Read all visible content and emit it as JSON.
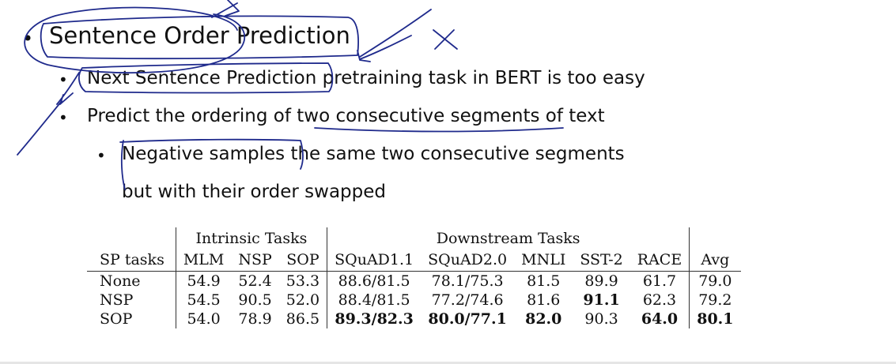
{
  "slide": {
    "bullets": [
      {
        "text": "Sentence Order Prediction",
        "level": 1
      },
      {
        "text": "Next Sentence Prediction pretraining task in BERT is too easy",
        "level": 2
      },
      {
        "text": "Predict the ordering of two consecutive segments of text",
        "level": 2
      },
      {
        "text": "Negative samples the same two consecutive segments",
        "level": 3
      },
      {
        "text": "but with their order swapped",
        "level": 3,
        "continuation": true
      }
    ]
  },
  "table": {
    "group_headers": {
      "intrinsic": "Intrinsic Tasks",
      "downstream": "Downstream Tasks"
    },
    "columns": [
      "SP tasks",
      "MLM",
      "NSP",
      "SOP",
      "SQuAD1.1",
      "SQuAD2.0",
      "MNLI",
      "SST-2",
      "RACE",
      "Avg"
    ],
    "rows": [
      {
        "cells": [
          "None",
          "54.9",
          "52.4",
          "53.3",
          "88.6/81.5",
          "78.1/75.3",
          "81.5",
          "89.9",
          "61.7",
          "79.0"
        ],
        "bold": [
          false,
          false,
          false,
          false,
          false,
          false,
          false,
          false,
          false,
          false
        ]
      },
      {
        "cells": [
          "NSP",
          "54.5",
          "90.5",
          "52.0",
          "88.4/81.5",
          "77.2/74.6",
          "81.6",
          "91.1",
          "62.3",
          "79.2"
        ],
        "bold": [
          false,
          false,
          false,
          false,
          false,
          false,
          false,
          true,
          false,
          false
        ]
      },
      {
        "cells": [
          "SOP",
          "54.0",
          "78.9",
          "86.5",
          "89.3/82.3",
          "80.0/77.1",
          "82.0",
          "90.3",
          "64.0",
          "80.1"
        ],
        "bold": [
          false,
          false,
          false,
          false,
          true,
          true,
          true,
          false,
          true,
          true
        ]
      }
    ]
  },
  "colors": {
    "ink": "#1f2a8c",
    "text": "#111111"
  }
}
